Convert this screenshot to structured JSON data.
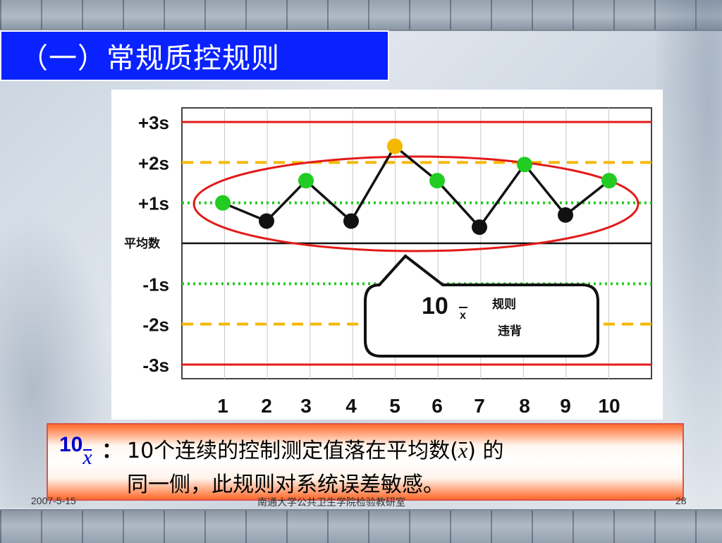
{
  "slide": {
    "title": "（一）常规质控规则",
    "footer_date": "2007-5-15",
    "footer_org": "南通大学公共卫生学院检验教研室",
    "page_number": "28"
  },
  "chart_data": {
    "type": "line",
    "x": [
      1,
      2,
      3,
      4,
      5,
      6,
      7,
      8,
      9,
      10
    ],
    "xtick_labels": [
      "1",
      "2",
      "3",
      "4",
      "5",
      "6",
      "7",
      "8",
      "9",
      "10"
    ],
    "series": [
      {
        "values": [
          1.0,
          0.55,
          1.55,
          0.55,
          2.4,
          1.55,
          0.4,
          1.95,
          0.7,
          1.55
        ],
        "point_colors": [
          "#22cc22",
          "#111111",
          "#22cc22",
          "#111111",
          "#f5b800",
          "#22cc22",
          "#111111",
          "#22cc22",
          "#111111",
          "#22cc22"
        ]
      }
    ],
    "ylim": [
      -3.35,
      3.35
    ],
    "yticks": [
      {
        "label": "+3s",
        "value": 3,
        "line": "solid",
        "color": "#e31a1a"
      },
      {
        "label": "+2s",
        "value": 2,
        "line": "dashed",
        "color": "#f5b800"
      },
      {
        "label": "+1s",
        "value": 1,
        "line": "dotted",
        "color": "#22cc22"
      },
      {
        "label": "平均数",
        "value": 0,
        "line": "solid",
        "color": "#111111"
      },
      {
        "label": "-1s",
        "value": -1,
        "line": "dotted",
        "color": "#22cc22"
      },
      {
        "label": "-2s",
        "value": -2,
        "line": "dashed",
        "color": "#f5b800"
      },
      {
        "label": "-3s",
        "value": -3,
        "line": "solid",
        "color": "#e31a1a"
      }
    ],
    "grid": true,
    "annotation": {
      "main": "10",
      "subscript": "x",
      "text_line1": "规则",
      "text_line2": "违背",
      "ellipse_color": "#e31a1a"
    }
  },
  "rule": {
    "code_main": "10",
    "code_sub": "x",
    "colon": "：",
    "line1_prefix": "10个连续的控制测定值落在平均数(",
    "line1_xbar": "x",
    "line1_suffix": ") 的",
    "line2": "同一侧，此规则对系统误差敏感。"
  }
}
